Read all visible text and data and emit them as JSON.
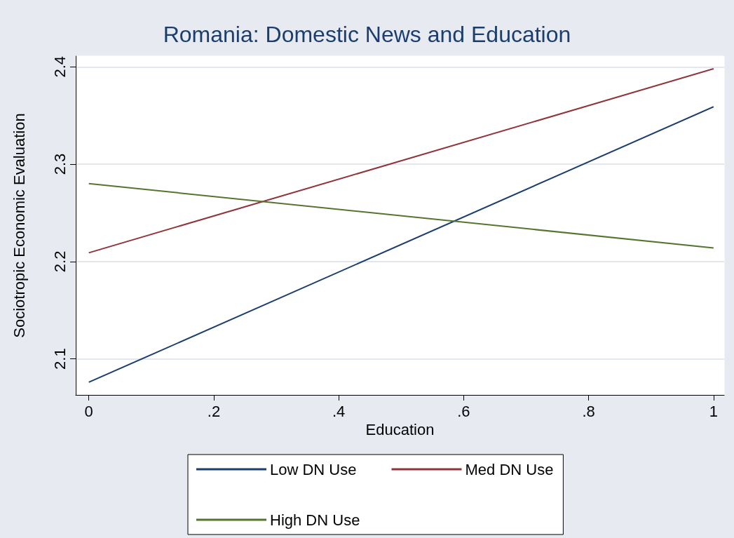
{
  "chart_data": {
    "type": "line",
    "title": "Romania: Domestic News and Education",
    "xlabel": "Education",
    "ylabel": "Sociotropic Economic Evaluation",
    "x": [
      0,
      1
    ],
    "series": [
      {
        "name": "Low DN Use",
        "color": "#1a3e6e",
        "values": [
          2.076,
          2.359
        ]
      },
      {
        "name": "Med DN Use",
        "color": "#90353b",
        "values": [
          2.209,
          2.398
        ]
      },
      {
        "name": "High DN Use",
        "color": "#55752f",
        "values": [
          2.28,
          2.214
        ]
      }
    ],
    "xlim": [
      -0.021,
      1.017
    ],
    "xticks": [
      0,
      {
        "value": 0.2,
        "label": ".2"
      },
      {
        "value": 0.4,
        "label": ".4"
      },
      {
        "value": 0.6,
        "label": ".6"
      },
      {
        "value": 0.8,
        "label": ".8"
      },
      1
    ],
    "ylim": [
      2.063,
      2.411
    ],
    "yticks": [
      2.1,
      2.2,
      2.3,
      2.4
    ],
    "grid": "y",
    "legend": "bottom",
    "marker": "none",
    "line_style": "solid"
  }
}
